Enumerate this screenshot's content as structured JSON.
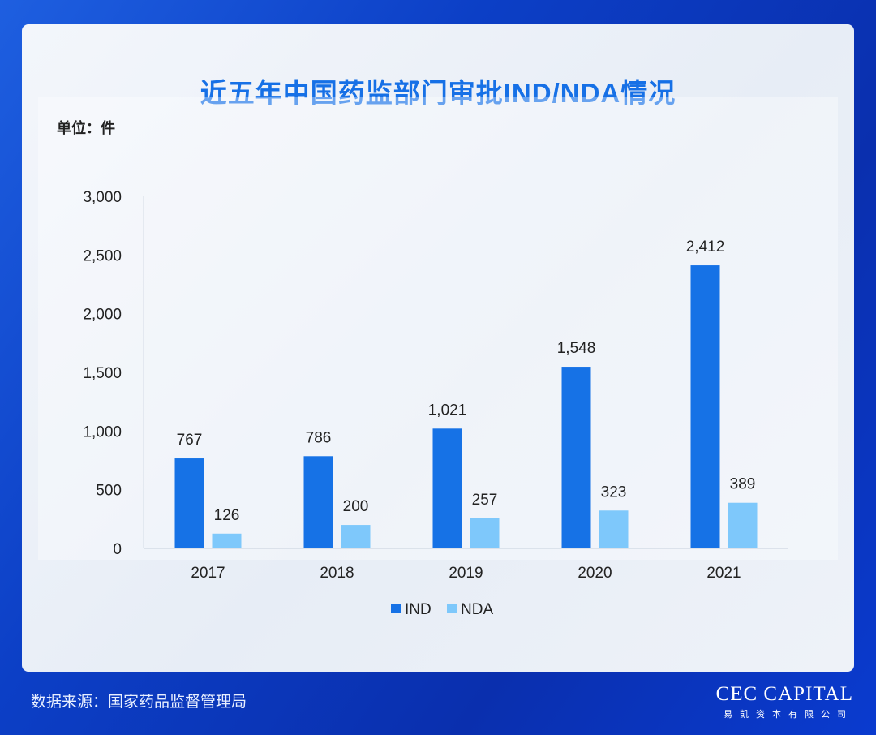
{
  "title": "近五年中国药监部门审批IND/NDA情况",
  "unit_label": "单位：件",
  "source": "数据来源：国家药品监督管理局",
  "logo": {
    "main": "CEC CAPITAL",
    "sub": "易凯资本有限公司"
  },
  "colors": {
    "ind": "#1672e6",
    "nda": "#7ec8fb",
    "title": "#1670e6"
  },
  "chart_data": {
    "type": "bar",
    "categories": [
      "2017",
      "2018",
      "2019",
      "2020",
      "2021"
    ],
    "series": [
      {
        "name": "IND",
        "values": [
          767,
          786,
          1021,
          1548,
          2412
        ],
        "labels": [
          "767",
          "786",
          "1,021",
          "1,548",
          "2,412"
        ]
      },
      {
        "name": "NDA",
        "values": [
          126,
          200,
          257,
          323,
          389
        ],
        "labels": [
          "126",
          "200",
          "257",
          "323",
          "389"
        ]
      }
    ],
    "ylim": [
      0,
      3000
    ],
    "yticks": [
      0,
      500,
      1000,
      1500,
      2000,
      2500,
      3000
    ],
    "ytick_labels": [
      "0",
      "500",
      "1,000",
      "1,500",
      "2,000",
      "2,500",
      "3,000"
    ],
    "legend": "bottom-center",
    "grid": false
  }
}
